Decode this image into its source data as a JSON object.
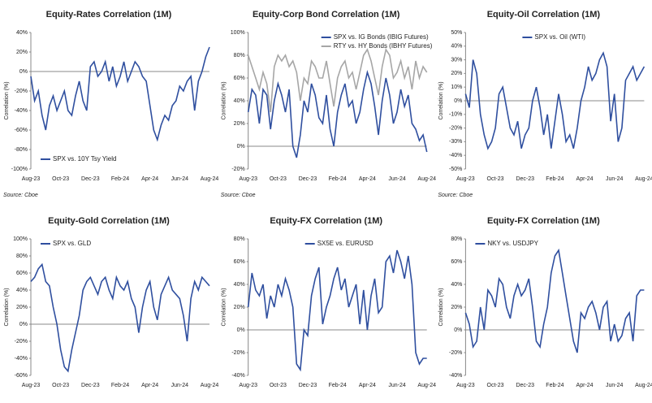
{
  "chart_data": [
    {
      "type": "line",
      "title": "Equity-Rates Correlation (1M)",
      "y_label": "Correlation (%)",
      "source": "Source: Cboe",
      "legend": "lower left",
      "categories": [
        "Aug-23",
        null,
        null,
        null,
        null,
        null,
        null,
        null,
        "Oct-23",
        null,
        null,
        null,
        null,
        null,
        null,
        null,
        "Dec-23",
        null,
        null,
        null,
        null,
        null,
        null,
        null,
        "Feb-24",
        null,
        null,
        null,
        null,
        null,
        null,
        null,
        "Apr-24",
        null,
        null,
        null,
        null,
        null,
        null,
        null,
        "Jun-24",
        null,
        null,
        null,
        null,
        null,
        null,
        null,
        "Aug-24"
      ],
      "series": [
        {
          "name": "SPX vs. 10Y Tsy Yield",
          "color": "#2f4f9f",
          "values": [
            -5,
            -30,
            -20,
            -45,
            -60,
            -35,
            -25,
            -40,
            -30,
            -20,
            -40,
            -45,
            -25,
            -10,
            -30,
            -40,
            5,
            10,
            -5,
            0,
            10,
            -10,
            5,
            -15,
            -5,
            10,
            -10,
            0,
            10,
            5,
            -5,
            -10,
            -35,
            -60,
            -70,
            -55,
            -45,
            -50,
            -35,
            -30,
            -15,
            -20,
            -10,
            -5,
            -40,
            -10,
            0,
            15,
            25
          ]
        }
      ],
      "ylim": [
        -100,
        40
      ],
      "yticks": [
        {
          "value": -100,
          "label": "-100%"
        },
        {
          "value": -80,
          "label": "-80%"
        },
        {
          "value": -60,
          "label": "-60%"
        },
        {
          "value": -40,
          "label": "-40%"
        },
        {
          "value": -20,
          "label": "-20%"
        },
        {
          "value": 0,
          "label": "0%"
        },
        {
          "value": 20,
          "label": "20%"
        },
        {
          "value": 40,
          "label": "40%"
        }
      ]
    },
    {
      "type": "line",
      "title": "Equity-Corp Bond Correlation (1M)",
      "y_label": "Correlation (%)",
      "source": "Source: Cboe",
      "legend": "upper right",
      "categories": [
        "Aug-23",
        null,
        null,
        null,
        null,
        null,
        null,
        null,
        "Oct-23",
        null,
        null,
        null,
        null,
        null,
        null,
        null,
        "Dec-23",
        null,
        null,
        null,
        null,
        null,
        null,
        null,
        "Feb-24",
        null,
        null,
        null,
        null,
        null,
        null,
        null,
        "Apr-24",
        null,
        null,
        null,
        null,
        null,
        null,
        null,
        "Jun-24",
        null,
        null,
        null,
        null,
        null,
        null,
        null,
        "Aug-24"
      ],
      "series": [
        {
          "name": "SPX vs. IG Bonds (IBIG Futures)",
          "color": "#2f4f9f",
          "values": [
            30,
            50,
            45,
            20,
            50,
            45,
            15,
            40,
            55,
            45,
            30,
            50,
            0,
            -10,
            10,
            40,
            30,
            55,
            45,
            25,
            20,
            45,
            15,
            0,
            30,
            45,
            55,
            35,
            40,
            20,
            30,
            50,
            65,
            55,
            35,
            10,
            40,
            60,
            45,
            20,
            30,
            50,
            35,
            45,
            20,
            15,
            5,
            10,
            -5
          ]
        },
        {
          "name": "RTY vs. HY Bonds (IBHY Futures)",
          "color": "#a6a6a6",
          "values": [
            80,
            70,
            60,
            50,
            65,
            55,
            30,
            70,
            80,
            75,
            80,
            70,
            75,
            65,
            40,
            60,
            55,
            75,
            70,
            60,
            60,
            75,
            55,
            35,
            60,
            70,
            75,
            60,
            65,
            50,
            65,
            80,
            85,
            75,
            60,
            45,
            70,
            85,
            80,
            60,
            65,
            75,
            60,
            70,
            50,
            75,
            60,
            70,
            65
          ]
        }
      ],
      "ylim": [
        -20,
        100
      ],
      "yticks": [
        {
          "value": -20,
          "label": "-20%"
        },
        {
          "value": 0,
          "label": "0%"
        },
        {
          "value": 20,
          "label": "20%"
        },
        {
          "value": 40,
          "label": "40%"
        },
        {
          "value": 60,
          "label": "60%"
        },
        {
          "value": 80,
          "label": "80%"
        },
        {
          "value": 100,
          "label": "100%"
        }
      ]
    },
    {
      "type": "line",
      "title": "Equity-Oil Correlation (1M)",
      "y_label": "Correlation (%)",
      "source": "Source: Cboe",
      "legend": "upper center",
      "categories": [
        "Aug-23",
        null,
        null,
        null,
        null,
        null,
        null,
        null,
        "Oct-23",
        null,
        null,
        null,
        null,
        null,
        null,
        null,
        "Dec-23",
        null,
        null,
        null,
        null,
        null,
        null,
        null,
        "Feb-24",
        null,
        null,
        null,
        null,
        null,
        null,
        null,
        "Apr-24",
        null,
        null,
        null,
        null,
        null,
        null,
        null,
        "Jun-24",
        null,
        null,
        null,
        null,
        null,
        null,
        null,
        "Aug-24"
      ],
      "series": [
        {
          "name": "SPX vs. Oil (WTI)",
          "color": "#2f4f9f",
          "values": [
            5,
            -5,
            30,
            20,
            -10,
            -25,
            -35,
            -30,
            -20,
            5,
            10,
            -5,
            -20,
            -25,
            -15,
            -35,
            -25,
            -20,
            0,
            10,
            -5,
            -25,
            -10,
            -35,
            -15,
            5,
            -10,
            -30,
            -25,
            -35,
            -20,
            0,
            10,
            25,
            15,
            20,
            30,
            35,
            25,
            -15,
            5,
            -30,
            -20,
            15,
            20,
            25,
            15,
            20,
            25
          ]
        }
      ],
      "ylim": [
        -50,
        50
      ],
      "yticks": [
        {
          "value": -50,
          "label": "-50%"
        },
        {
          "value": -40,
          "label": "-40%"
        },
        {
          "value": -30,
          "label": "-30%"
        },
        {
          "value": -20,
          "label": "-20%"
        },
        {
          "value": -10,
          "label": "-10%"
        },
        {
          "value": 0,
          "label": "0%"
        },
        {
          "value": 10,
          "label": "10%"
        },
        {
          "value": 20,
          "label": "20%"
        },
        {
          "value": 30,
          "label": "30%"
        },
        {
          "value": 40,
          "label": "40%"
        },
        {
          "value": 50,
          "label": "50%"
        }
      ]
    },
    {
      "type": "line",
      "title": "Equity-Gold Correlation (1M)",
      "y_label": "Correlation (%)",
      "legend": "upper left",
      "categories": [
        "Aug-23",
        null,
        null,
        null,
        null,
        null,
        null,
        null,
        "Oct-23",
        null,
        null,
        null,
        null,
        null,
        null,
        null,
        "Dec-23",
        null,
        null,
        null,
        null,
        null,
        null,
        null,
        "Feb-24",
        null,
        null,
        null,
        null,
        null,
        null,
        null,
        "Apr-24",
        null,
        null,
        null,
        null,
        null,
        null,
        null,
        "Jun-24",
        null,
        null,
        null,
        null,
        null,
        null,
        null,
        "Aug-24"
      ],
      "series": [
        {
          "name": "SPX vs. GLD",
          "color": "#2f4f9f",
          "values": [
            50,
            55,
            65,
            70,
            50,
            45,
            20,
            0,
            -30,
            -50,
            -55,
            -30,
            -10,
            10,
            40,
            50,
            55,
            45,
            35,
            50,
            55,
            40,
            30,
            55,
            45,
            40,
            50,
            30,
            20,
            -10,
            20,
            40,
            50,
            20,
            5,
            35,
            45,
            55,
            40,
            35,
            30,
            10,
            -20,
            30,
            50,
            40,
            55,
            50,
            45
          ]
        }
      ],
      "ylim": [
        -60,
        100
      ],
      "yticks": [
        {
          "value": -60,
          "label": "-60%"
        },
        {
          "value": -40,
          "label": "-40%"
        },
        {
          "value": -20,
          "label": "-20%"
        },
        {
          "value": 0,
          "label": "0%"
        },
        {
          "value": 20,
          "label": "20%"
        },
        {
          "value": 40,
          "label": "40%"
        },
        {
          "value": 60,
          "label": "60%"
        },
        {
          "value": 80,
          "label": "80%"
        },
        {
          "value": 100,
          "label": "100%"
        }
      ]
    },
    {
      "type": "line",
      "title": "Equity-FX Correlation (1M)",
      "y_label": "Correlation (%)",
      "legend": "upper center",
      "categories": [
        "Aug-23",
        null,
        null,
        null,
        null,
        null,
        null,
        null,
        "Oct-23",
        null,
        null,
        null,
        null,
        null,
        null,
        null,
        "Dec-23",
        null,
        null,
        null,
        null,
        null,
        null,
        null,
        "Feb-24",
        null,
        null,
        null,
        null,
        null,
        null,
        null,
        "Apr-24",
        null,
        null,
        null,
        null,
        null,
        null,
        null,
        "Jun-24",
        null,
        null,
        null,
        null,
        null,
        null,
        null,
        "Aug-24"
      ],
      "series": [
        {
          "name": "SX5E vs. EURUSD",
          "color": "#2f4f9f",
          "values": [
            20,
            50,
            35,
            30,
            40,
            10,
            30,
            20,
            40,
            30,
            45,
            35,
            20,
            -30,
            -35,
            0,
            -5,
            30,
            45,
            55,
            5,
            20,
            30,
            45,
            55,
            35,
            45,
            20,
            30,
            40,
            5,
            35,
            0,
            30,
            45,
            15,
            20,
            60,
            65,
            50,
            70,
            60,
            45,
            65,
            40,
            -20,
            -30,
            -25,
            -25
          ]
        }
      ],
      "ylim": [
        -40,
        80
      ],
      "yticks": [
        {
          "value": -40,
          "label": "-40%"
        },
        {
          "value": -20,
          "label": "-20%"
        },
        {
          "value": 0,
          "label": "0%"
        },
        {
          "value": 20,
          "label": "20%"
        },
        {
          "value": 40,
          "label": "40%"
        },
        {
          "value": 60,
          "label": "60%"
        },
        {
          "value": 80,
          "label": "80%"
        }
      ]
    },
    {
      "type": "line",
      "title": "Equity-FX Correlation (1M)",
      "y_label": "Correlation (%)",
      "legend": "upper left",
      "categories": [
        "Aug-23",
        null,
        null,
        null,
        null,
        null,
        null,
        null,
        "Oct-23",
        null,
        null,
        null,
        null,
        null,
        null,
        null,
        "Dec-23",
        null,
        null,
        null,
        null,
        null,
        null,
        null,
        "Feb-24",
        null,
        null,
        null,
        null,
        null,
        null,
        null,
        "Apr-24",
        null,
        null,
        null,
        null,
        null,
        null,
        null,
        "Jun-24",
        null,
        null,
        null,
        null,
        null,
        null,
        null,
        "Aug-24"
      ],
      "series": [
        {
          "name": "NKY vs. USDJPY",
          "color": "#2f4f9f",
          "values": [
            15,
            5,
            -15,
            -10,
            20,
            0,
            35,
            30,
            20,
            45,
            40,
            20,
            10,
            30,
            40,
            30,
            35,
            45,
            20,
            -10,
            -15,
            5,
            20,
            50,
            65,
            70,
            50,
            30,
            10,
            -10,
            -20,
            15,
            10,
            20,
            25,
            15,
            0,
            20,
            25,
            -10,
            5,
            -10,
            -5,
            10,
            15,
            -10,
            30,
            35,
            35
          ]
        }
      ],
      "ylim": [
        -40,
        80
      ],
      "yticks": [
        {
          "value": -40,
          "label": "-40%"
        },
        {
          "value": -20,
          "label": "-20%"
        },
        {
          "value": 0,
          "label": "0%"
        },
        {
          "value": 20,
          "label": "20%"
        },
        {
          "value": 40,
          "label": "40%"
        },
        {
          "value": 60,
          "label": "60%"
        },
        {
          "value": 80,
          "label": "80%"
        }
      ]
    }
  ]
}
